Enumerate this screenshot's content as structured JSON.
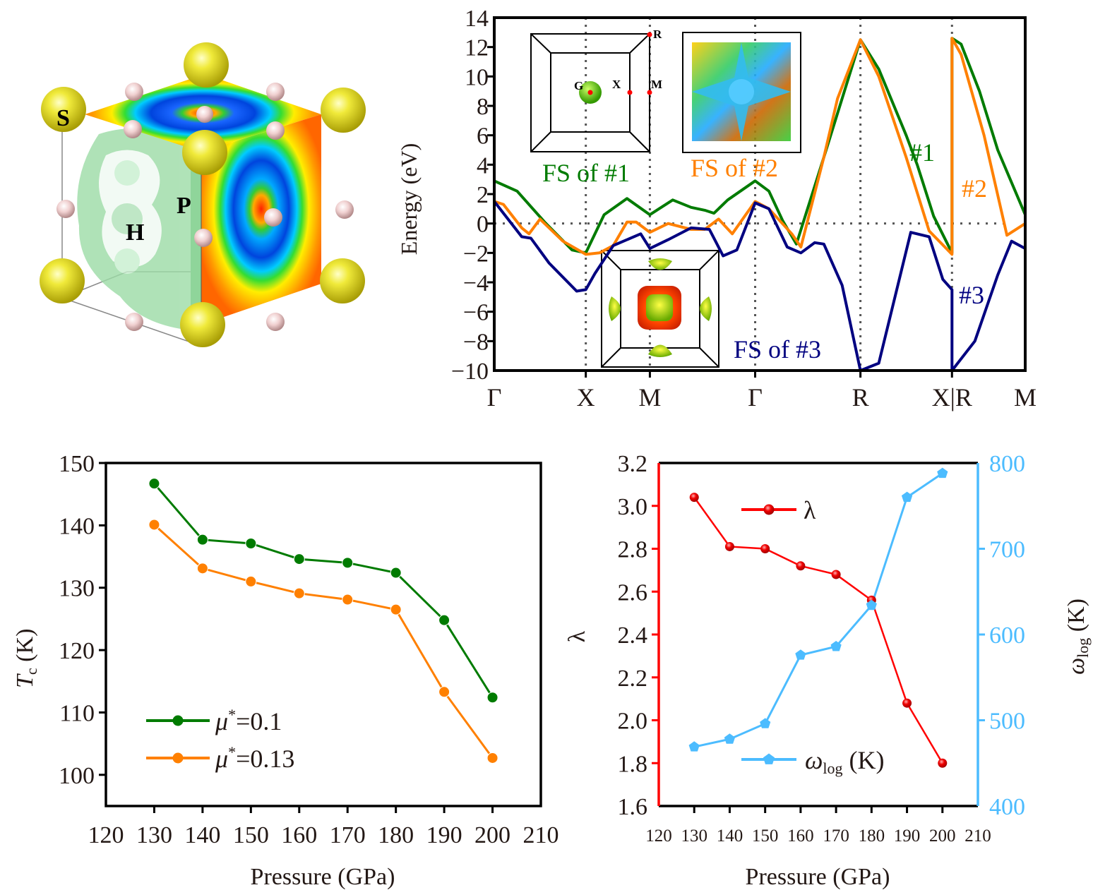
{
  "structure_panel": {
    "atom_labels": [
      "S",
      "H",
      "P"
    ],
    "colors": {
      "S": "#e2dc1e",
      "H": "#f3d6d6",
      "isosurface": "#8fd59a"
    }
  },
  "chart_data": [
    {
      "id": "band_structure",
      "type": "line",
      "title": "",
      "xlabel": "",
      "ylabel": "Energy (eV)",
      "ylim": [
        -10,
        14
      ],
      "yticks": [
        "−10",
        "−8",
        "−6",
        "−4",
        "−2",
        "0",
        "2",
        "4",
        "6",
        "8",
        "10",
        "12",
        "14"
      ],
      "ytick_values": [
        -10,
        -8,
        -6,
        -4,
        -2,
        0,
        2,
        4,
        6,
        8,
        10,
        12,
        14
      ],
      "kpath_labels": [
        "Γ",
        "X",
        "M",
        "Γ",
        "R",
        "X|R",
        "M"
      ],
      "kpath_positions": [
        0,
        1,
        1.7,
        2.85,
        4.0,
        5.0,
        5.8
      ],
      "xlim": [
        0,
        5.8
      ],
      "fermi_level": 0,
      "series": [
        {
          "name": "#1",
          "color": "#007b00",
          "x": [
            0,
            0.25,
            0.55,
            0.85,
            1.0,
            1.2,
            1.45,
            1.7,
            1.95,
            2.15,
            2.3,
            2.4,
            2.55,
            2.85,
            3.0,
            3.15,
            3.3,
            3.6,
            4.0,
            4.2,
            4.5,
            4.62,
            4.8,
            5.0,
            5.0,
            5.1,
            5.3,
            5.5,
            5.8
          ],
          "y": [
            2.9,
            2.2,
            0.1,
            -1.8,
            -2.0,
            0.6,
            1.7,
            0.6,
            1.6,
            1.1,
            0.9,
            0.7,
            1.6,
            2.9,
            2.2,
            0.2,
            -1.4,
            4.5,
            12.5,
            10.5,
            6.0,
            4.0,
            0.5,
            -2.0,
            12.6,
            12.2,
            9.0,
            5.0,
            0.6
          ]
        },
        {
          "name": "#2",
          "color": "#ff8000",
          "x": [
            0,
            0.1,
            0.3,
            0.38,
            0.5,
            0.75,
            1.0,
            1.15,
            1.3,
            1.45,
            1.55,
            1.7,
            1.9,
            2.15,
            2.3,
            2.45,
            2.6,
            2.85,
            3.0,
            3.25,
            3.35,
            3.6,
            3.75,
            4.0,
            4.2,
            4.5,
            4.75,
            5.0,
            5.0,
            5.1,
            5.35,
            5.6,
            5.8
          ],
          "y": [
            1.5,
            1.3,
            -0.3,
            -0.7,
            0.3,
            -1.2,
            -2.1,
            -2.0,
            -1.5,
            0.1,
            0.1,
            -0.6,
            0.0,
            -0.4,
            -0.4,
            0.3,
            -0.7,
            1.5,
            1.0,
            -0.7,
            -1.6,
            4.5,
            8.5,
            12.5,
            10.0,
            4.5,
            -0.5,
            -2.1,
            12.6,
            11.5,
            6.0,
            -0.8,
            0.0
          ]
        },
        {
          "name": "#3",
          "color": "#000080",
          "x": [
            0,
            0.3,
            0.4,
            0.6,
            0.9,
            1.0,
            1.1,
            1.3,
            1.6,
            1.7,
            1.9,
            2.15,
            2.35,
            2.5,
            2.65,
            2.85,
            3.0,
            3.2,
            3.35,
            3.5,
            3.6,
            3.8,
            4.0,
            4.2,
            4.55,
            4.75,
            4.9,
            5.0,
            5.0,
            5.25,
            5.5,
            5.65,
            5.8
          ],
          "y": [
            1.5,
            -0.9,
            -1.0,
            -2.7,
            -4.6,
            -4.5,
            -3.4,
            -1.5,
            -0.7,
            -1.7,
            -1.1,
            -0.3,
            -0.4,
            -2.2,
            -1.8,
            1.4,
            1.0,
            -1.6,
            -2.0,
            -1.3,
            -1.4,
            -4.2,
            -10.0,
            -9.5,
            -0.6,
            -0.9,
            -3.8,
            -4.5,
            -10.0,
            -8.0,
            -3.5,
            -1.2,
            -1.7
          ]
        }
      ],
      "annotations": [
        {
          "text": "FS of #1",
          "color": "#007b00"
        },
        {
          "text": "FS of #2",
          "color": "#ff8000"
        },
        {
          "text": "FS of #3",
          "color": "#000080"
        },
        {
          "text": "#1",
          "color": "#007b00"
        },
        {
          "text": "#2",
          "color": "#ff8000"
        },
        {
          "text": "#3",
          "color": "#000080"
        }
      ],
      "inset_bz_labels": [
        "R",
        "G",
        "X",
        "M"
      ]
    },
    {
      "id": "tc_vs_pressure",
      "type": "line",
      "title": "",
      "xlabel": "Pressure (GPa)",
      "ylabel": "T_c (K)",
      "ylabel_main": "T",
      "ylabel_sub": "c",
      "ylabel_unit": " (K)",
      "xlim": [
        120,
        210
      ],
      "ylim": [
        95,
        150
      ],
      "xticks": [
        120,
        130,
        140,
        150,
        160,
        170,
        180,
        190,
        200,
        210
      ],
      "yticks": [
        100,
        110,
        120,
        130,
        140,
        150
      ],
      "x": [
        130,
        140,
        150,
        160,
        170,
        180,
        190,
        200
      ],
      "series": [
        {
          "name": "μ*=0.1",
          "legend_main": "μ",
          "legend_sup": "*",
          "legend_rest": "=0.1",
          "color": "#007b00",
          "values": [
            146.7,
            137.7,
            137.1,
            134.6,
            134.0,
            132.4,
            124.8,
            112.4
          ]
        },
        {
          "name": "μ*=0.13",
          "legend_main": "μ",
          "legend_sup": "*",
          "legend_rest": "=0.13",
          "color": "#ff8000",
          "values": [
            140.1,
            133.1,
            131.0,
            129.1,
            128.1,
            126.5,
            113.3,
            102.7
          ]
        }
      ],
      "legend": "bottom-left"
    },
    {
      "id": "lambda_omega_vs_pressure",
      "type": "line",
      "title": "",
      "xlabel": "Pressure (GPa)",
      "ylabel_left": "λ",
      "ylabel_right": "ω_log (K)",
      "xlim": [
        120,
        210
      ],
      "ylim_left": [
        1.6,
        3.2
      ],
      "ylim_right": [
        400,
        800
      ],
      "xticks": [
        120,
        130,
        140,
        150,
        160,
        170,
        180,
        190,
        200,
        210
      ],
      "yticks_left": [
        "1.6",
        "1.8",
        "2.0",
        "2.2",
        "2.4",
        "2.6",
        "2.8",
        "3.0",
        "3.2"
      ],
      "yticks_right": [
        400,
        500,
        600,
        700,
        800
      ],
      "x": [
        130,
        140,
        150,
        160,
        170,
        180,
        190,
        200
      ],
      "series": [
        {
          "name": "λ",
          "axis": "left",
          "color": "#ff0000",
          "marker": "sphere",
          "values": [
            3.04,
            2.81,
            2.8,
            2.72,
            2.68,
            2.56,
            2.08,
            1.8
          ]
        },
        {
          "name": "ω_log (K)",
          "legend_main": "ω",
          "legend_sub": "log",
          "legend_rest": " (K)",
          "axis": "right",
          "color": "#4cbcff",
          "marker": "pentagon",
          "values": [
            469,
            478,
            496,
            576,
            586,
            634,
            760,
            788
          ]
        }
      ],
      "legend": "inside"
    }
  ]
}
